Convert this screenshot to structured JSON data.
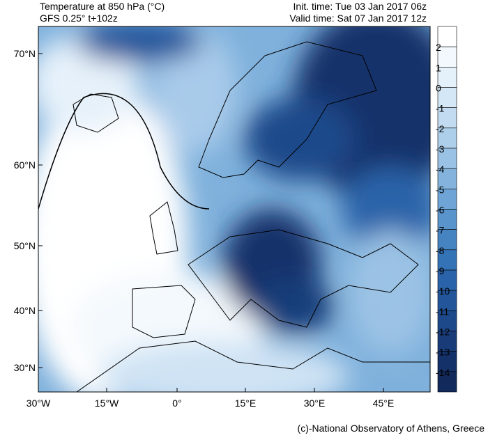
{
  "header": {
    "title": "Temperature at 850 hPa (°C)",
    "subtitle": "GFS 0.25° t+102z",
    "init_time": "Init. time: Tue 03 Jan 2017 06z",
    "valid_time": "Valid time: Sat 07 Jan 2017 12z"
  },
  "map": {
    "lat_labels": [
      "70°N",
      "60°N",
      "50°N",
      "40°N",
      "30°N"
    ],
    "lon_labels": [
      "30°W",
      "15°W",
      "0°",
      "15°E",
      "30°E",
      "45°E"
    ]
  },
  "colorbar": {
    "labels": [
      2,
      1,
      0,
      -1,
      -2,
      -3,
      -4,
      -5,
      -6,
      -7,
      -8,
      -9,
      -10,
      -11,
      -12,
      -13,
      -14
    ],
    "colors": [
      "#ffffff",
      "#f2f8fd",
      "#e4f0fa",
      "#d4e7f6",
      "#c2dbf0",
      "#aecfea",
      "#99c2e4",
      "#84b4dd",
      "#6ea5d6",
      "#5994cc",
      "#4583c1",
      "#3573b7",
      "#2a63a9",
      "#22559a",
      "#1d488a",
      "#193c79",
      "#15316a",
      "#12295c"
    ]
  },
  "footer": {
    "credit": "(c)-National Observatory of Athens, Greece"
  }
}
